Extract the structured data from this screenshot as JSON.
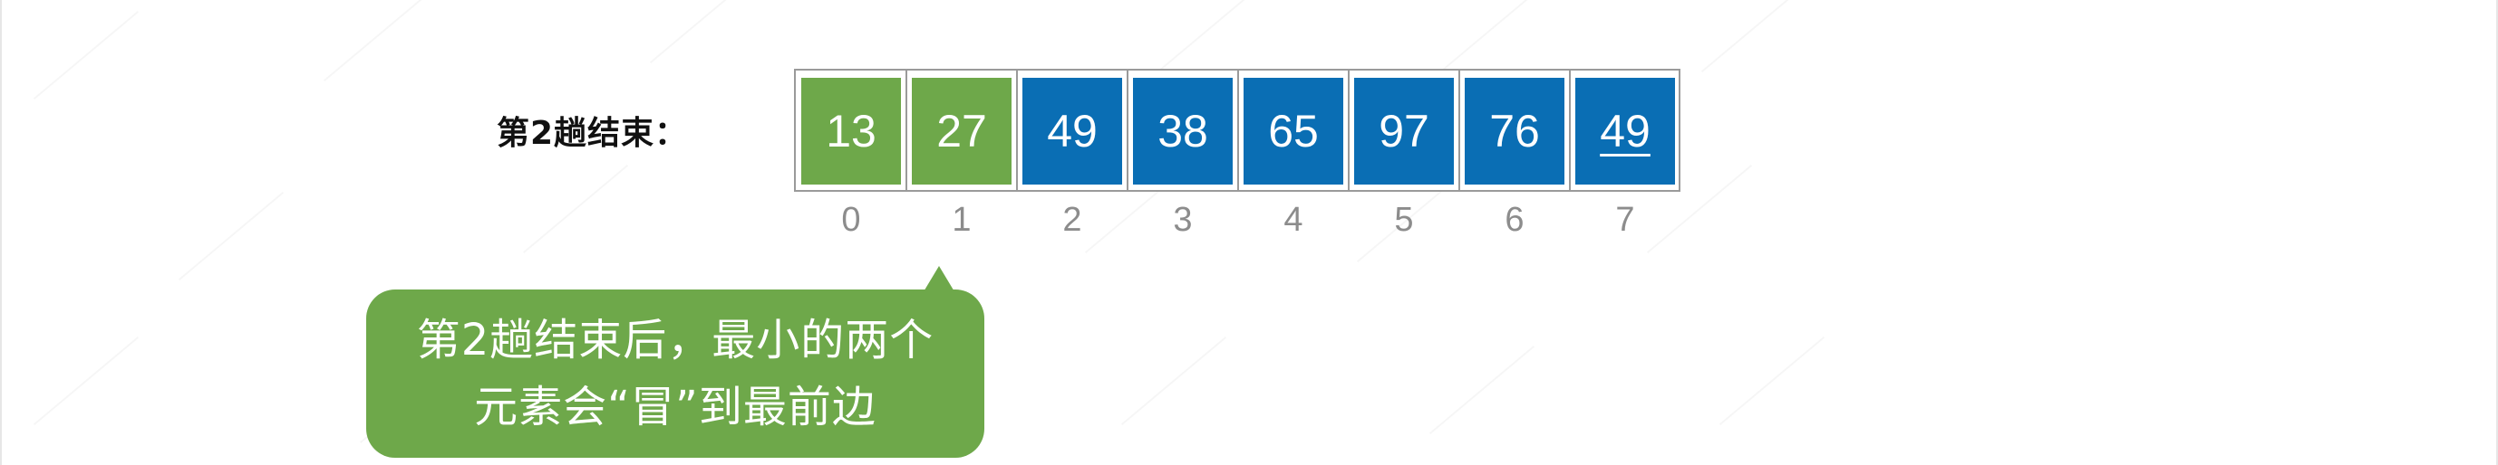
{
  "step_label": "第2趟结束：",
  "array": {
    "cells": [
      {
        "value": "13",
        "state": "sorted"
      },
      {
        "value": "27",
        "state": "sorted"
      },
      {
        "value": "49",
        "state": "unsorted"
      },
      {
        "value": "38",
        "state": "unsorted"
      },
      {
        "value": "65",
        "state": "unsorted"
      },
      {
        "value": "97",
        "state": "unsorted"
      },
      {
        "value": "76",
        "state": "unsorted"
      },
      {
        "value": "49",
        "state": "unsorted",
        "underlined": true
      }
    ],
    "indices": [
      "0",
      "1",
      "2",
      "3",
      "4",
      "5",
      "6",
      "7"
    ]
  },
  "callout": {
    "lines": [
      "第2趟结束后，最小的两个",
      "元素会“冒”到最前边"
    ]
  },
  "colors": {
    "sorted": "#6ea84a",
    "unsorted": "#0a6eb4",
    "callout": "#6ea84a",
    "frame": "#9a9a9a",
    "index_text": "#8c8c8c"
  }
}
